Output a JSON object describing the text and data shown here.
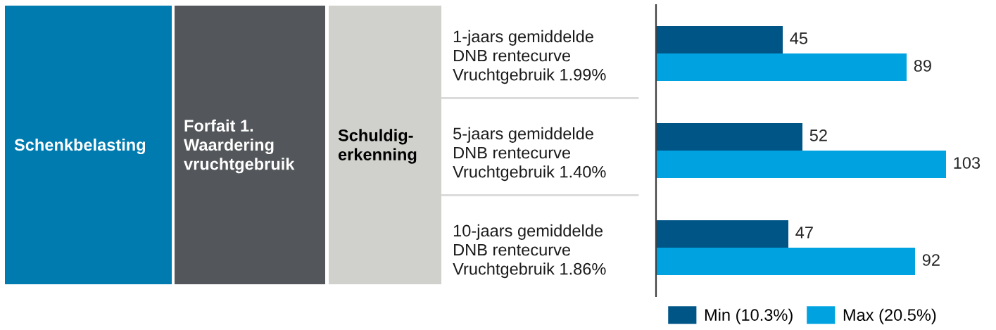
{
  "chart_data": {
    "type": "bar",
    "orientation": "horizontal",
    "categories": [
      "1-jaars gemiddelde\nDNB rentecurve\nVruchtgebruik 1.99%",
      "5-jaars gemiddelde\nDNB rentecurve\nVruchtgebruik 1.40%",
      "10-jaars gemiddelde\nDNB rentecurve\nVruchtgebruik 1.86%"
    ],
    "series": [
      {
        "name": "Min (10.3%)",
        "color": "#005587",
        "values": [
          45,
          52,
          47
        ]
      },
      {
        "name": "Max (20.5%)",
        "color": "#00a3e0",
        "values": [
          89,
          103,
          92
        ]
      }
    ],
    "data_labels": true,
    "legend": "bottom",
    "tick_labels": "y",
    "annotations": [
      "Schenkbelasting",
      "Forfait 1.\nWaardering\nvruchtgebruik",
      "Schuldig-\nerkenning"
    ]
  }
}
